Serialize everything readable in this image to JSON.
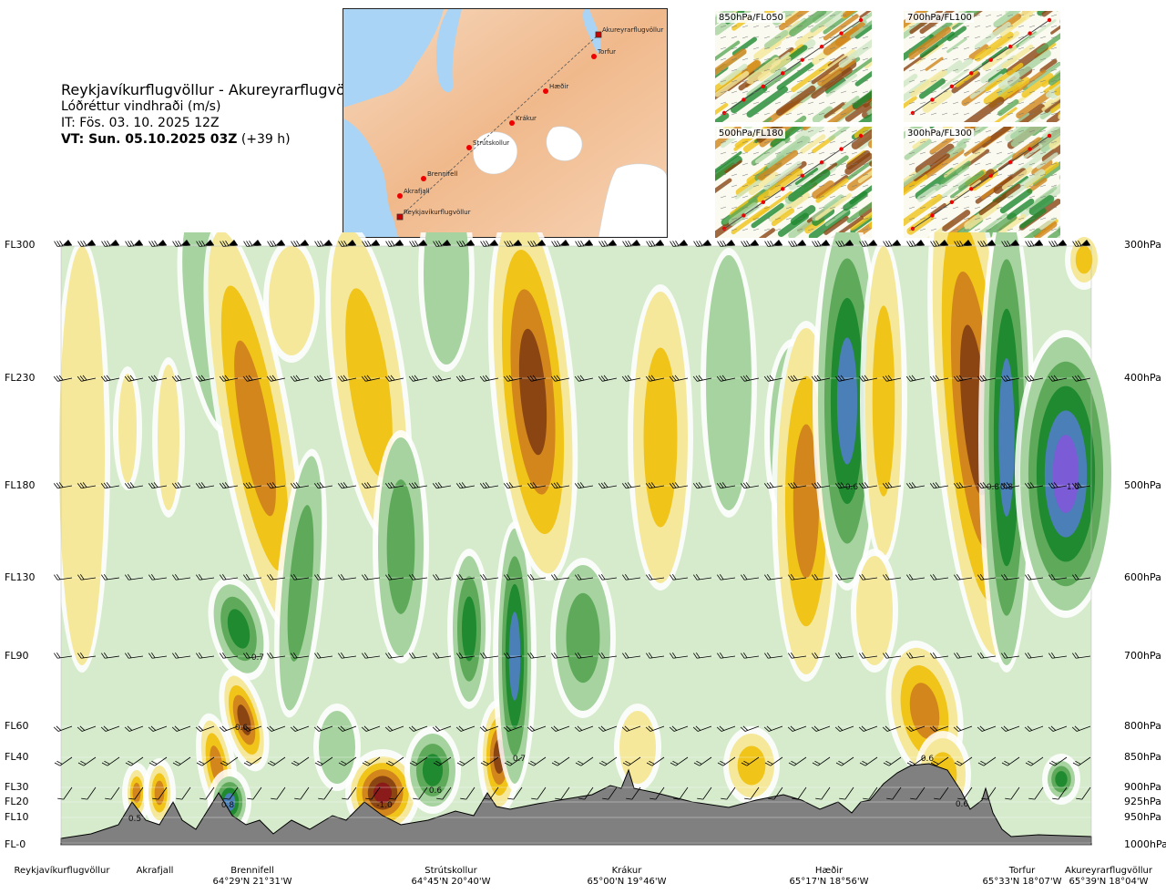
{
  "header": {
    "route": "Reykjavíkurflugvöllur - Akureyrarflugvöllur",
    "quantity": "Lóðréttur vindhraði (m/s)",
    "issue_time": "IT: Fös. 03. 10. 2025 12Z",
    "valid_prefix": "VT: Sun. 05.10.2025 03Z",
    "valid_suffix": "(+39 h)"
  },
  "route_map": {
    "points": [
      "Akureyrarflugvöllur",
      "Torfur",
      "Hæðir",
      "Krákur",
      "Strútskollur",
      "Brennifell",
      "Akrafjall",
      "Reykjavíkurflugvöllur"
    ]
  },
  "level_maps": [
    {
      "label": "850hPa/FL050"
    },
    {
      "label": "700hPa/FL100"
    },
    {
      "label": "500hPa/FL180"
    },
    {
      "label": "300hPa/FL300"
    }
  ],
  "chart_data": {
    "type": "heatmap",
    "title": "Lóðréttur vindhraði (m/s)",
    "flight_levels": [
      "FL300",
      "FL230",
      "FL180",
      "FL130",
      "FL90",
      "FL60",
      "FL40",
      "FL30",
      "FL20",
      "FL10",
      "FL-0"
    ],
    "pressure_levels": [
      "300hPa",
      "400hPa",
      "500hPa",
      "600hPa",
      "700hPa",
      "800hPa",
      "850hPa",
      "900hPa",
      "925hPa",
      "950hPa",
      "1000hPa"
    ],
    "pressure_values": [
      300,
      400,
      500,
      600,
      700,
      800,
      850,
      900,
      925,
      950,
      1000
    ],
    "locations": [
      {
        "name": "Reykjavíkurflugvöllur",
        "coord": ""
      },
      {
        "name": "Akrafjall",
        "coord": ""
      },
      {
        "name": "Brennifell",
        "coord": "64°29'N 21°31'W"
      },
      {
        "name": "Strútskollur",
        "coord": "64°45'N 20°40'W"
      },
      {
        "name": "Krákur",
        "coord": "65°00'N 19°46'W"
      },
      {
        "name": "Hæðir",
        "coord": "65°17'N 18°56'W"
      },
      {
        "name": "Torfur",
        "coord": "65°33'N 18°07'W"
      },
      {
        "name": "Akureyrarflugvöllur",
        "coord": "65°39'N 18°04'W"
      }
    ],
    "annotations": [
      "0.5",
      "0.7",
      "0.6",
      "0.8",
      "-1.0",
      "0.6",
      "0.7",
      "0.6",
      "0.6",
      "0.6",
      "0.8",
      "0.8",
      "1.0"
    ],
    "palette": {
      "strong_down": "#8b1a1a",
      "down3": "#8b4513",
      "down2": "#d2861c",
      "down1": "#f0c419",
      "weak_down": "#f5e89a",
      "neutral": "#fafaf0",
      "weak_up": "#d2e8c8",
      "up1": "#a7d3a0",
      "up2": "#5eaa5a",
      "up3": "#1f8a30",
      "strong_up": "#4a7fb8",
      "extreme_up": "#7b5cd6",
      "terrain": "#808080"
    }
  }
}
